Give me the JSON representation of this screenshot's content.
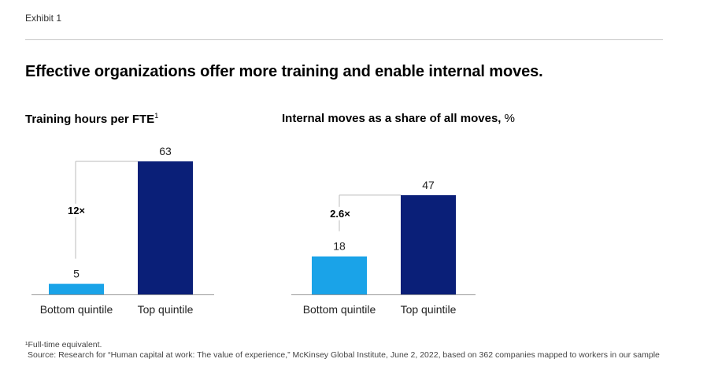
{
  "header": {
    "exhibit_label": "Exhibit 1",
    "title": "Effective organizations offer more training and enable internal moves."
  },
  "charts": {
    "training": {
      "title": "Training hours per FTE",
      "footnote_marker": "1",
      "multiplier": "12×"
    },
    "moves": {
      "title": "Internal moves as a share of all moves,",
      "unit": " %",
      "multiplier": "2.6×"
    }
  },
  "footnotes": {
    "note1": "¹Full-time equivalent.",
    "source": "Source: Research for “Human capital at work: The value of experience,” McKinsey Global Institute, June 2, 2022, based on 362 companies mapped to workers in our sample"
  },
  "colors": {
    "bottom_quintile": "#1aa3e8",
    "top_quintile": "#0a1f78",
    "axis": "#999999",
    "bracket": "#bbbbbb"
  },
  "chart_data": [
    {
      "type": "bar",
      "title": "Training hours per FTE",
      "categories": [
        "Bottom quintile",
        "Top quintile"
      ],
      "values": [
        5,
        63
      ],
      "value_labels": [
        "5",
        "63"
      ],
      "ylim": [
        0,
        63
      ],
      "annotation": "12×",
      "grid": false
    },
    {
      "type": "bar",
      "title": "Internal moves as a share of all moves, %",
      "categories": [
        "Bottom quintile",
        "Top quintile"
      ],
      "values": [
        18,
        47
      ],
      "value_labels": [
        "18",
        "47"
      ],
      "ylim": [
        0,
        63
      ],
      "annotation": "2.6×",
      "grid": false
    }
  ]
}
